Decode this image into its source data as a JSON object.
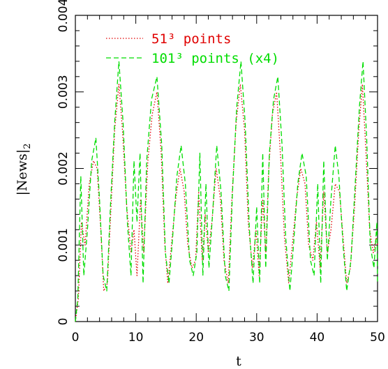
{
  "chart_data": {
    "type": "line",
    "title": "",
    "xlabel": "t",
    "ylabel": "|News|",
    "ylabel_subscript": "2",
    "xlim": [
      0,
      50
    ],
    "ylim": [
      0,
      0.004
    ],
    "x_ticks": [
      "0",
      "10",
      "20",
      "30",
      "40",
      "50"
    ],
    "y_ticks": [
      "0",
      "0.001",
      "0.002",
      "0.003",
      "0.004"
    ],
    "grid": false,
    "legend_position": "top-left",
    "series": [
      {
        "name": "51³ points",
        "color": "#e00000",
        "style": "dotted",
        "x": [
          0,
          0.5,
          1.0,
          1.6,
          2.3,
          3.0,
          3.6,
          4.2,
          4.7,
          5.3,
          5.9,
          6.5,
          7.2,
          7.8,
          8.5,
          9.2,
          9.7,
          10.2,
          10.8,
          11.3,
          12.0,
          12.7,
          13.5,
          14.2,
          14.8,
          15.3,
          15.9,
          16.6,
          17.3,
          18.0,
          18.6,
          19.3,
          19.9,
          20.4,
          21.0,
          21.5,
          22.0,
          22.6,
          23.3,
          24.0,
          24.6,
          25.3,
          25.9,
          26.6,
          27.3,
          28.0,
          28.6,
          29.3,
          29.9,
          30.4,
          31.0,
          31.5,
          32.0,
          32.6,
          33.3,
          34.0,
          34.6,
          35.3,
          35.9,
          36.6,
          37.3,
          38.0,
          38.6,
          39.3,
          39.9,
          40.5,
          41.1,
          41.7,
          42.3,
          43.0,
          43.7,
          44.3,
          44.9,
          45.5,
          46.2,
          46.9,
          47.5,
          48.1,
          48.7,
          49.3,
          49.8,
          50.0
        ],
        "y": [
          0.0,
          0.0003,
          0.0013,
          0.001,
          0.0018,
          0.0021,
          0.002,
          0.0012,
          0.0004,
          0.0005,
          0.0015,
          0.0025,
          0.0031,
          0.0025,
          0.0015,
          0.0009,
          0.0012,
          0.0006,
          0.0016,
          0.0009,
          0.0021,
          0.0027,
          0.003,
          0.0022,
          0.001,
          0.0005,
          0.001,
          0.0016,
          0.002,
          0.0017,
          0.001,
          0.0007,
          0.0008,
          0.0017,
          0.0008,
          0.0014,
          0.0009,
          0.0013,
          0.002,
          0.0016,
          0.0008,
          0.0005,
          0.0016,
          0.0026,
          0.0031,
          0.0025,
          0.0013,
          0.0007,
          0.0012,
          0.0006,
          0.0016,
          0.0009,
          0.002,
          0.0027,
          0.003,
          0.0021,
          0.0011,
          0.0005,
          0.001,
          0.0016,
          0.002,
          0.0018,
          0.001,
          0.0008,
          0.0013,
          0.0007,
          0.0017,
          0.0009,
          0.0012,
          0.0018,
          0.0017,
          0.0011,
          0.0005,
          0.0007,
          0.0015,
          0.0025,
          0.0031,
          0.0022,
          0.0012,
          0.0009,
          0.0011,
          0.001
        ]
      },
      {
        "name": "101³ points (x4)",
        "color": "#00dd00",
        "style": "dashed",
        "x": [
          0,
          0.4,
          0.9,
          1.4,
          2.0,
          2.7,
          3.4,
          4.0,
          4.6,
          5.2,
          5.8,
          6.5,
          7.2,
          7.9,
          8.6,
          9.2,
          9.7,
          10.2,
          10.7,
          11.2,
          11.8,
          12.6,
          13.5,
          14.3,
          14.9,
          15.5,
          16.1,
          16.8,
          17.5,
          18.2,
          18.9,
          19.5,
          20.1,
          20.6,
          21.1,
          21.6,
          22.1,
          22.7,
          23.4,
          24.1,
          24.8,
          25.4,
          26.0,
          26.7,
          27.4,
          28.1,
          28.8,
          29.4,
          30.0,
          30.5,
          31.0,
          31.5,
          32.1,
          32.8,
          33.5,
          34.2,
          34.8,
          35.5,
          36.1,
          36.8,
          37.5,
          38.2,
          38.9,
          39.5,
          40.1,
          40.6,
          41.1,
          41.7,
          42.3,
          43.0,
          43.6,
          44.3,
          44.9,
          45.6,
          46.3,
          47.0,
          47.6,
          48.2,
          48.8,
          49.4,
          49.9,
          50.0
        ],
        "y": [
          0.0,
          0.0003,
          0.0019,
          0.0006,
          0.0012,
          0.0021,
          0.0024,
          0.0016,
          0.0006,
          0.0004,
          0.0015,
          0.0026,
          0.0034,
          0.0026,
          0.0013,
          0.0006,
          0.0021,
          0.0013,
          0.0022,
          0.0005,
          0.0021,
          0.0029,
          0.0032,
          0.0023,
          0.0009,
          0.0005,
          0.0011,
          0.0019,
          0.0023,
          0.0018,
          0.0008,
          0.0006,
          0.0009,
          0.0022,
          0.0006,
          0.0018,
          0.0007,
          0.0014,
          0.0023,
          0.0017,
          0.0006,
          0.0004,
          0.0017,
          0.0028,
          0.0034,
          0.0026,
          0.0012,
          0.0005,
          0.0015,
          0.0005,
          0.0022,
          0.0007,
          0.0022,
          0.0029,
          0.0032,
          0.0023,
          0.0011,
          0.0004,
          0.001,
          0.0018,
          0.0022,
          0.0019,
          0.0008,
          0.0006,
          0.0018,
          0.0005,
          0.0021,
          0.0008,
          0.0016,
          0.0023,
          0.0019,
          0.001,
          0.0004,
          0.0008,
          0.0018,
          0.0028,
          0.0034,
          0.0024,
          0.001,
          0.0007,
          0.0013,
          0.0005
        ]
      }
    ]
  }
}
